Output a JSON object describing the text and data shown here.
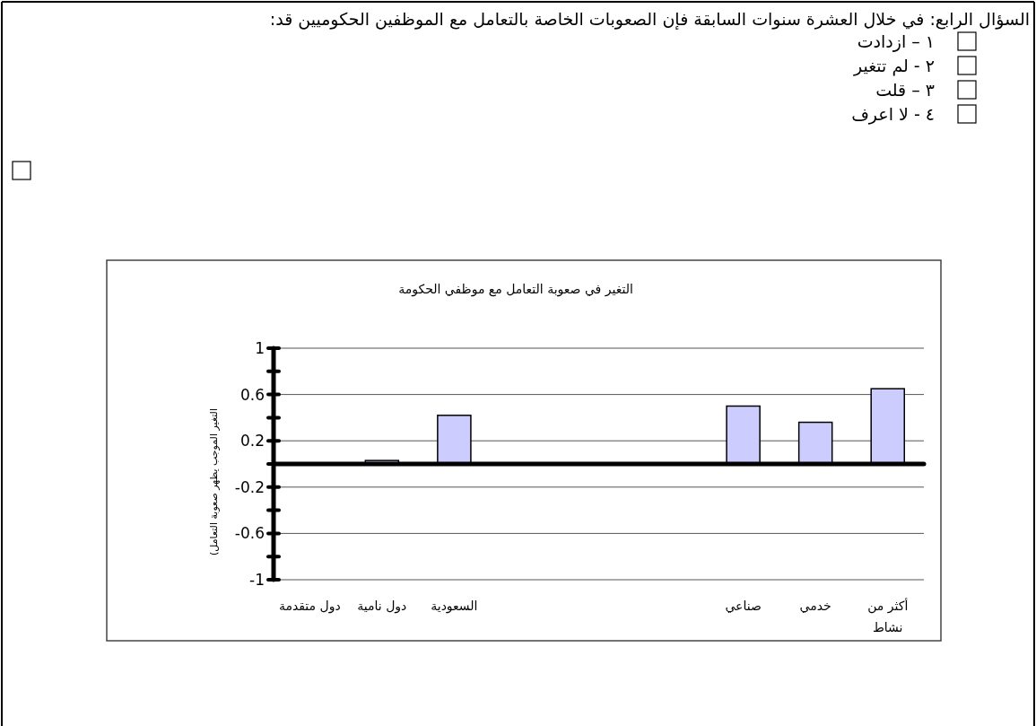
{
  "chart_data": {
    "type": "bar",
    "title": "التغير في صعوبة التعامل مع موظفي الحكومة",
    "ylabel": "التغير الموجب يظهر صعوبة التعامل)",
    "categories": [
      "دول متقدمة",
      "دول نامية",
      "السعودية",
      null,
      null,
      null,
      "صناعي",
      "خدمي",
      "أكثر من نشاط"
    ],
    "values": [
      0.0,
      0.03,
      0.42,
      null,
      null,
      null,
      0.5,
      0.36,
      0.65
    ],
    "color": "#ccccff",
    "ylim": [
      -1,
      1
    ],
    "yticks": [
      1,
      {
        "value": 0.8,
        "label": null
      },
      0.6,
      {
        "value": 0.4,
        "label": null
      },
      0.2,
      {
        "value": 0,
        "label": null
      },
      -0.2,
      {
        "value": -0.4,
        "label": null
      },
      -0.6,
      {
        "value": -0.8,
        "label": null
      },
      -1
    ],
    "grid": "y",
    "annotations": [
      "السؤال الرابع: في خلال العشرة سنوات السابقة فإن الصعوبات الخاصة بالتعامل مع الموظفين الحكوميين قد:",
      "١ – ازدادت",
      "٢ -   لم تتغير",
      "٣ – قلت",
      "٤ -  لا اعرف"
    ]
  }
}
